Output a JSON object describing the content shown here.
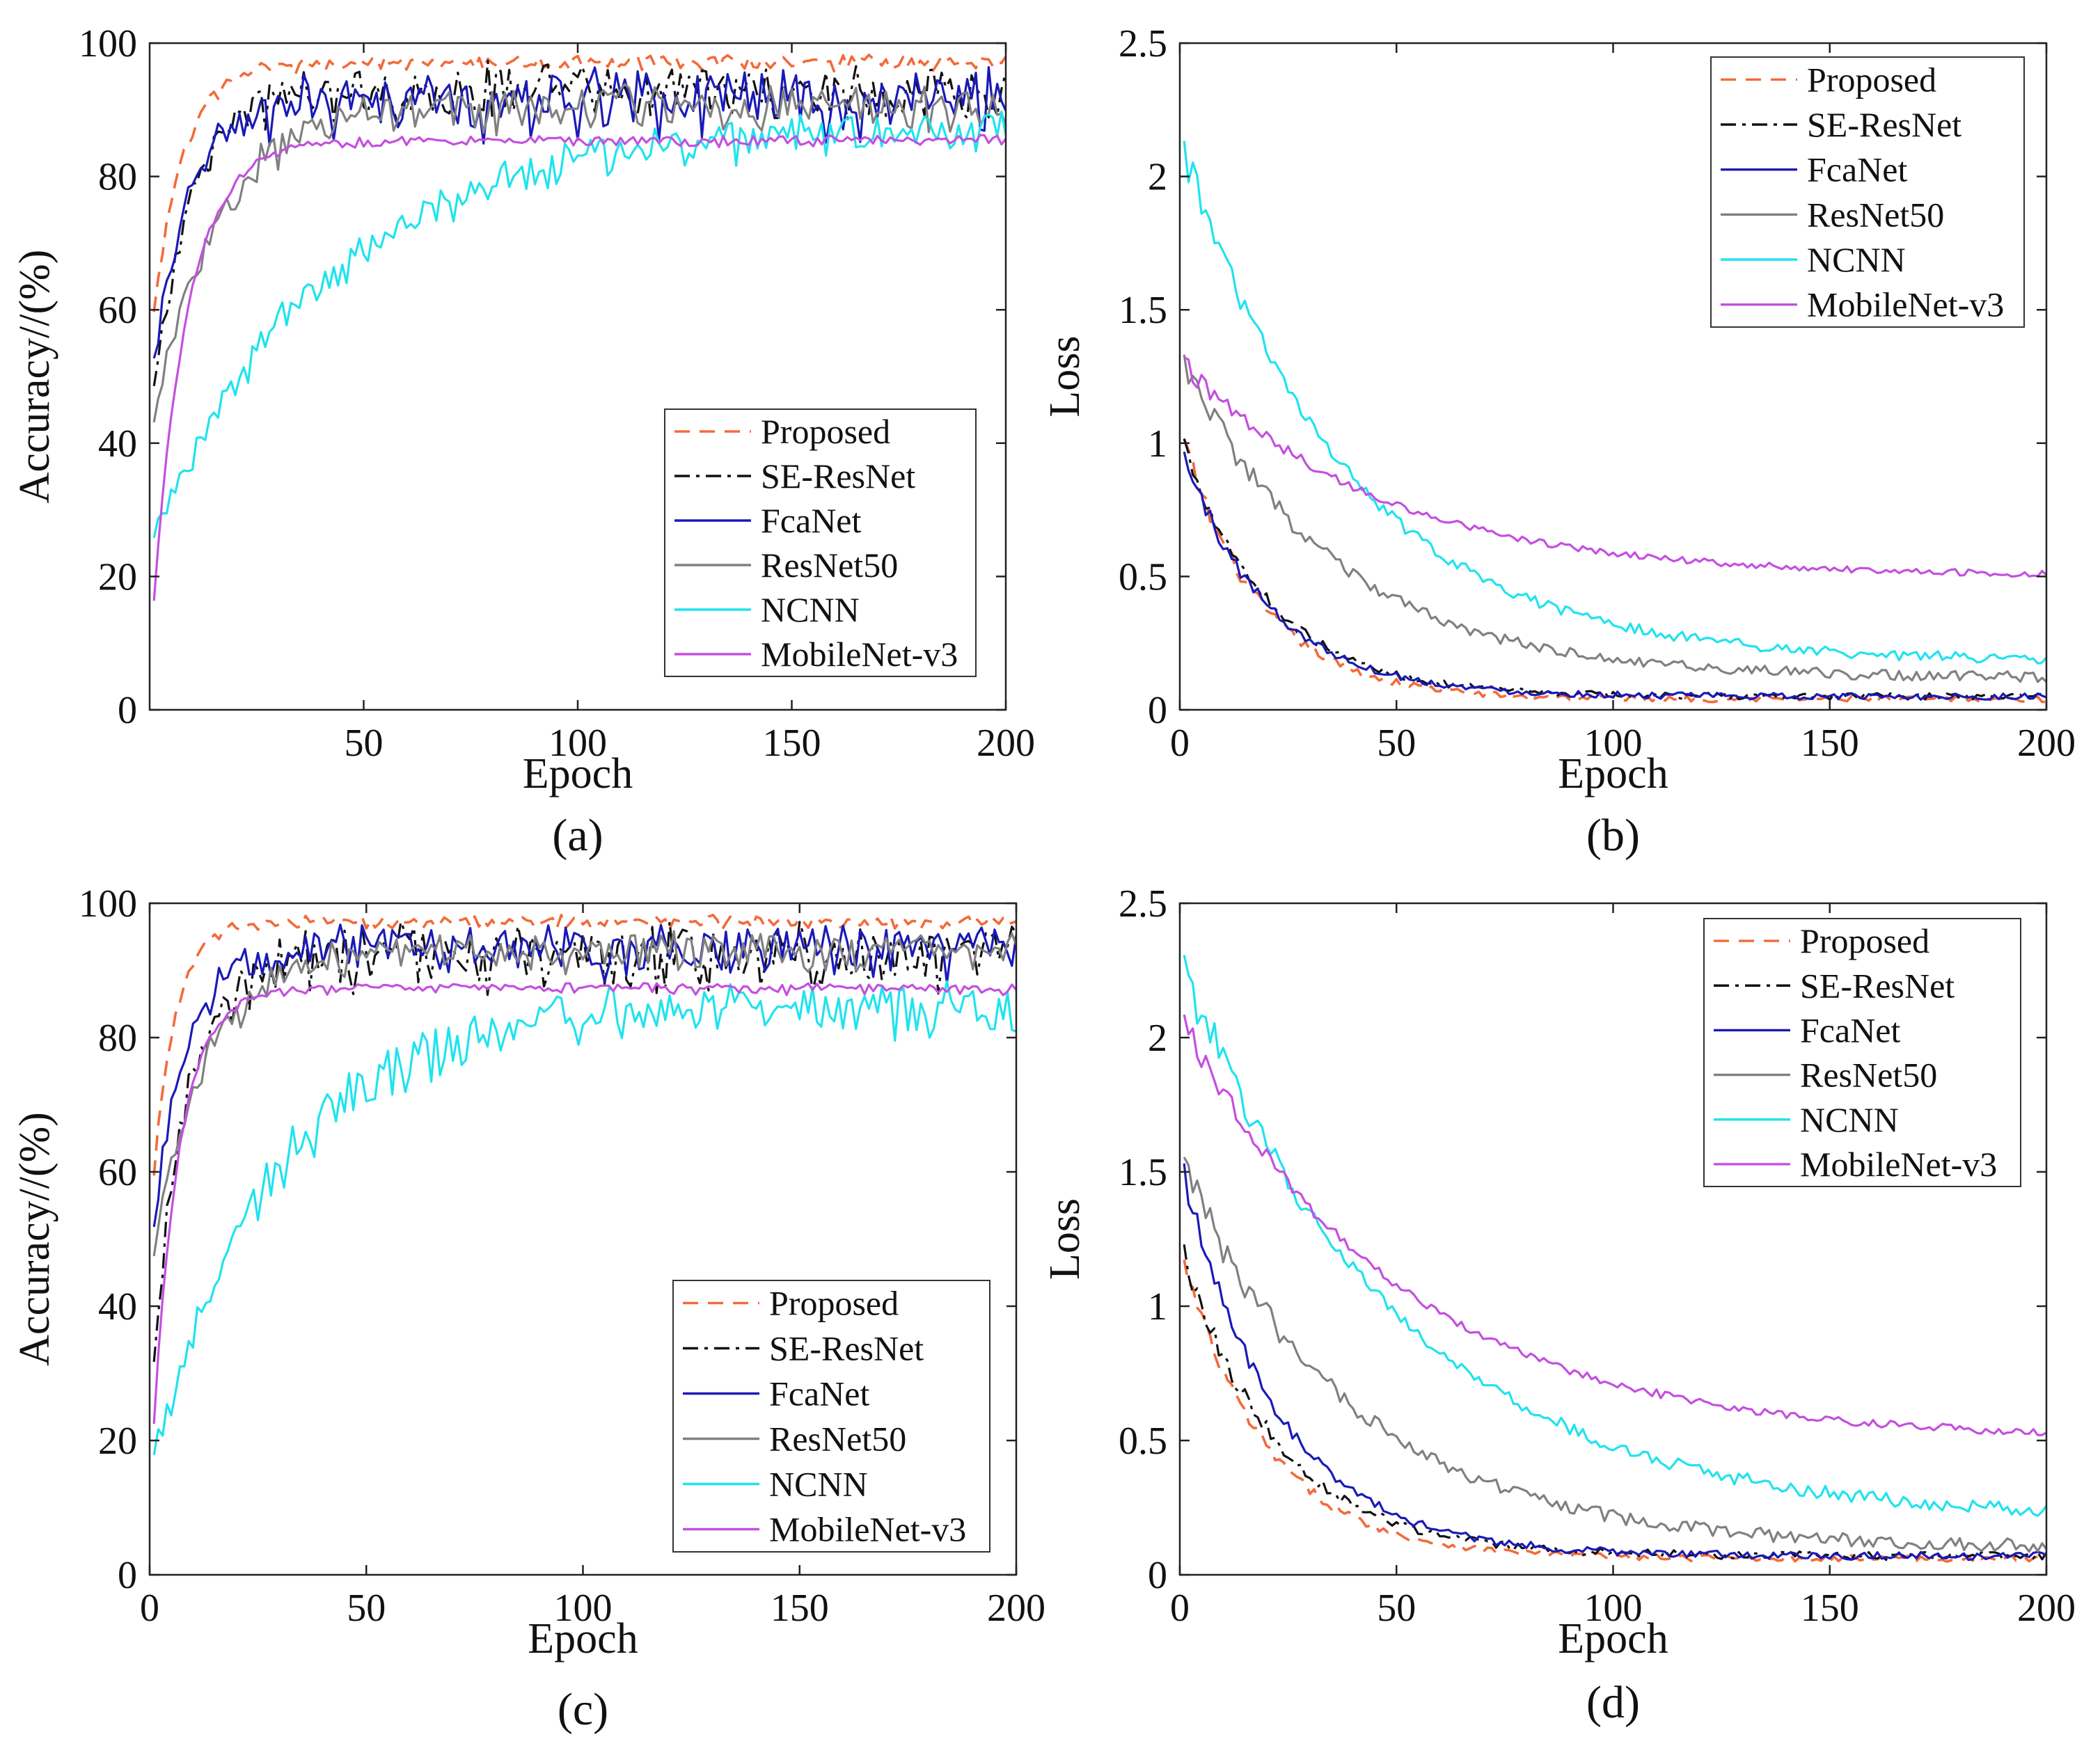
{
  "series_styles": [
    {
      "name": "Proposed",
      "color": "#F26B3A",
      "dash": "dashed"
    },
    {
      "name": "SE-ResNet",
      "color": "#111111",
      "dash": "dashdot"
    },
    {
      "name": "FcaNet",
      "color": "#1A1AB8",
      "dash": "solid"
    },
    {
      "name": "ResNet50",
      "color": "#808080",
      "dash": "solid"
    },
    {
      "name": "NCNN",
      "color": "#1FE3EE",
      "dash": "solid"
    },
    {
      "name": "MobileNet-v3",
      "color": "#C44FE0",
      "dash": "solid"
    }
  ],
  "chart_data": [
    {
      "id": "a",
      "type": "line",
      "panel_label": "(a)",
      "title": "",
      "xlabel": "Epoch",
      "ylabel": "Accuracy//(%)",
      "xlim": [
        0,
        200
      ],
      "ylim": [
        0,
        100
      ],
      "xticks": [
        50,
        100,
        150,
        200
      ],
      "yticks": [
        0,
        20,
        40,
        60,
        80,
        100
      ],
      "legend_position": "lower-right",
      "series": [
        {
          "name": "Proposed",
          "kind": "acc",
          "start": 60,
          "end": 98,
          "tau": 7,
          "noise": 1.5
        },
        {
          "name": "SE-ResNet",
          "kind": "acc",
          "start": 50,
          "end": 96,
          "tau": 9,
          "noise": 5
        },
        {
          "name": "FcaNet",
          "kind": "acc",
          "start": 55,
          "end": 95,
          "tau": 9,
          "noise": 6
        },
        {
          "name": "ResNet50",
          "kind": "acc",
          "start": 45,
          "end": 93,
          "tau": 15,
          "noise": 4
        },
        {
          "name": "NCNN",
          "kind": "acc",
          "start": 28,
          "end": 90,
          "tau": 40,
          "noise": 4
        },
        {
          "name": "MobileNet-v3",
          "kind": "acc",
          "start": 17,
          "end": 86,
          "tau": 8,
          "noise": 1
        }
      ]
    },
    {
      "id": "b",
      "type": "line",
      "panel_label": "(b)",
      "title": "",
      "xlabel": "Epoch",
      "ylabel": "Loss",
      "xlim": [
        0,
        200
      ],
      "ylim": [
        0,
        2.5
      ],
      "xticks": [
        0,
        50,
        100,
        150,
        200
      ],
      "yticks": [
        0,
        0.5,
        1,
        1.5,
        2,
        2.5
      ],
      "legend_position": "top-right",
      "series": [
        {
          "name": "Proposed",
          "kind": "loss",
          "start": 1.0,
          "end": 0.04,
          "tau": 18,
          "noise": 0.012
        },
        {
          "name": "SE-ResNet",
          "kind": "loss",
          "start": 1.0,
          "end": 0.05,
          "tau": 20,
          "noise": 0.012
        },
        {
          "name": "FcaNet",
          "kind": "loss",
          "start": 0.95,
          "end": 0.05,
          "tau": 20,
          "noise": 0.012
        },
        {
          "name": "ResNet50",
          "kind": "loss",
          "start": 1.3,
          "end": 0.12,
          "tau": 35,
          "noise": 0.02
        },
        {
          "name": "NCNN",
          "kind": "loss",
          "start": 2.1,
          "end": 0.18,
          "tau": 38,
          "noise": 0.02
        },
        {
          "name": "MobileNet-v3",
          "kind": "loss",
          "start": 1.3,
          "end": 0.5,
          "tau": 45,
          "noise": 0.012
        }
      ]
    },
    {
      "id": "c",
      "type": "line",
      "panel_label": "(c)",
      "title": "",
      "xlabel": "Epoch",
      "ylabel": "Accuracy//(%)",
      "xlim": [
        0,
        200
      ],
      "ylim": [
        0,
        100
      ],
      "xticks": [
        0,
        50,
        100,
        150,
        200
      ],
      "yticks": [
        0,
        20,
        40,
        60,
        80,
        100
      ],
      "legend_position": "lower-right",
      "series": [
        {
          "name": "Proposed",
          "kind": "acc",
          "start": 60,
          "end": 98,
          "tau": 5,
          "noise": 1.2
        },
        {
          "name": "SE-ResNet",
          "kind": "acc",
          "start": 35,
          "end": 96,
          "tau": 8,
          "noise": 6
        },
        {
          "name": "FcaNet",
          "kind": "acc",
          "start": 55,
          "end": 96,
          "tau": 8,
          "noise": 5
        },
        {
          "name": "ResNet50",
          "kind": "acc",
          "start": 50,
          "end": 95,
          "tau": 12,
          "noise": 3.5
        },
        {
          "name": "NCNN",
          "kind": "acc",
          "start": 20,
          "end": 88,
          "tau": 28,
          "noise": 5
        },
        {
          "name": "MobileNet-v3",
          "kind": "acc",
          "start": 23,
          "end": 88,
          "tau": 6,
          "noise": 1
        }
      ]
    },
    {
      "id": "d",
      "type": "line",
      "panel_label": "(d)",
      "title": "",
      "xlabel": "Epoch",
      "ylabel": "Loss",
      "xlim": [
        0,
        200
      ],
      "ylim": [
        0,
        2.5
      ],
      "xticks": [
        0,
        50,
        100,
        150,
        200
      ],
      "yticks": [
        0,
        0.5,
        1,
        1.5,
        2,
        2.5
      ],
      "legend_position": "top-right",
      "series": [
        {
          "name": "Proposed",
          "kind": "loss",
          "start": 1.15,
          "end": 0.06,
          "tau": 20,
          "noise": 0.012
        },
        {
          "name": "SE-ResNet",
          "kind": "loss",
          "start": 1.2,
          "end": 0.07,
          "tau": 22,
          "noise": 0.015
        },
        {
          "name": "FcaNet",
          "kind": "loss",
          "start": 1.5,
          "end": 0.07,
          "tau": 22,
          "noise": 0.015
        },
        {
          "name": "ResNet50",
          "kind": "loss",
          "start": 1.5,
          "end": 0.1,
          "tau": 40,
          "noise": 0.025
        },
        {
          "name": "NCNN",
          "kind": "loss",
          "start": 2.25,
          "end": 0.2,
          "tau": 50,
          "noise": 0.025
        },
        {
          "name": "MobileNet-v3",
          "kind": "loss",
          "start": 2.05,
          "end": 0.5,
          "tau": 50,
          "noise": 0.015
        }
      ]
    }
  ]
}
